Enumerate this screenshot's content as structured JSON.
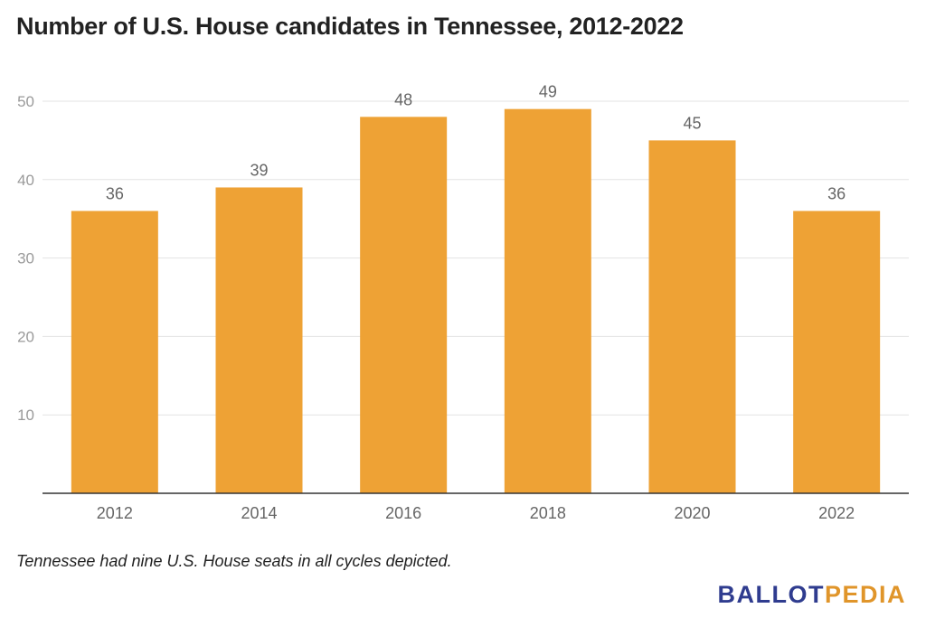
{
  "title": "Number of U.S. House candidates in Tennessee, 2012-2022",
  "note": "Tennessee had nine U.S. House seats in all cycles depicted.",
  "brand": {
    "part1": "BALLOT",
    "part2": "PEDIA",
    "color1": "#2f3c8f",
    "color2": "#e0952a"
  },
  "chart_data": {
    "type": "bar",
    "categories": [
      "2012",
      "2014",
      "2016",
      "2018",
      "2020",
      "2022"
    ],
    "values": [
      36,
      39,
      48,
      49,
      45,
      36
    ],
    "ylim": [
      0,
      50
    ],
    "yticks": [
      10,
      20,
      30,
      40,
      50
    ],
    "bar_color": "#eea235",
    "grid": true,
    "data_labels": true,
    "xlabel": "",
    "ylabel": ""
  }
}
